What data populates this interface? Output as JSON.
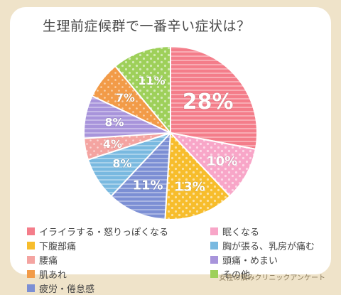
{
  "title": "生理前症候群で一番辛い症状は？",
  "source": "女性の悩みクリニックアンケート",
  "chart_data": {
    "type": "pie",
    "title": "生理前症候群で一番辛い症状は？",
    "start": "top",
    "direction": "clockwise",
    "slices": [
      {
        "label": "イライラする・怒りっぽくなる",
        "value": 28,
        "display": "28%",
        "color": "#f47d8a"
      },
      {
        "label": "眠くなる",
        "value": 10,
        "display": "10%",
        "color": "#f8a6c8"
      },
      {
        "label": "下腹部痛",
        "value": 13,
        "display": "13%",
        "color": "#f7bd2c"
      },
      {
        "label": "疲労・倦怠感",
        "value": 11,
        "display": "11%",
        "color": "#7c8fd4"
      },
      {
        "label": "胸が張る、乳房が痛む",
        "value": 8,
        "display": "8%",
        "color": "#79b9e0"
      },
      {
        "label": "腰痛",
        "value": 4,
        "display": "4%",
        "color": "#f4a4a1"
      },
      {
        "label": "頭痛・めまい",
        "value": 8,
        "display": "8%",
        "color": "#a894db"
      },
      {
        "label": "肌あれ",
        "value": 7,
        "display": "7%",
        "color": "#f29b48"
      },
      {
        "label": "その他",
        "value": 11,
        "display": "11%",
        "color": "#9ed05a"
      }
    ],
    "legend_order": [
      0,
      1,
      2,
      4,
      5,
      6,
      7,
      8,
      3
    ]
  }
}
